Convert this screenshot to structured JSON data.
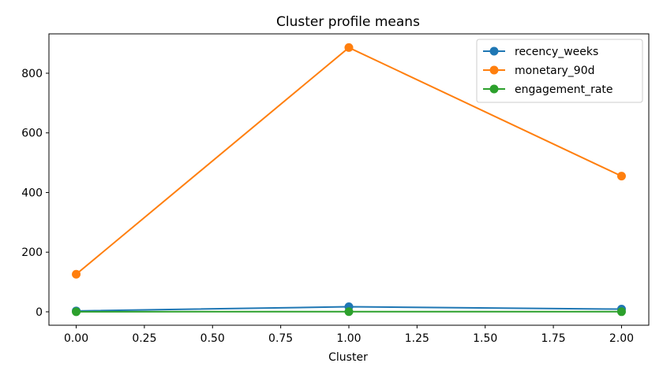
{
  "chart_data": {
    "type": "line",
    "title": "Cluster profile means",
    "xlabel": "Cluster",
    "ylabel": "",
    "xlim": [
      -0.1,
      2.1
    ],
    "ylim": [
      -45,
      932
    ],
    "x_ticks": [
      0.0,
      0.25,
      0.5,
      0.75,
      1.0,
      1.25,
      1.5,
      1.75,
      2.0
    ],
    "x_tick_labels": [
      "0.00",
      "0.25",
      "0.50",
      "0.75",
      "1.00",
      "1.25",
      "1.50",
      "1.75",
      "2.00"
    ],
    "y_ticks": [
      0,
      200,
      400,
      600,
      800
    ],
    "y_tick_labels": [
      "0",
      "200",
      "400",
      "600",
      "800"
    ],
    "grid": false,
    "legend_position": "top-right",
    "x": [
      0,
      1,
      2
    ],
    "series": [
      {
        "name": "recency_weeks",
        "color": "#1f77b4",
        "values": [
          3,
          17,
          9
        ]
      },
      {
        "name": "monetary_90d",
        "color": "#ff7f0e",
        "values": [
          126,
          886,
          455
        ]
      },
      {
        "name": "engagement_rate",
        "color": "#2ca02c",
        "values": [
          0.3,
          0.5,
          0.4
        ]
      }
    ]
  }
}
